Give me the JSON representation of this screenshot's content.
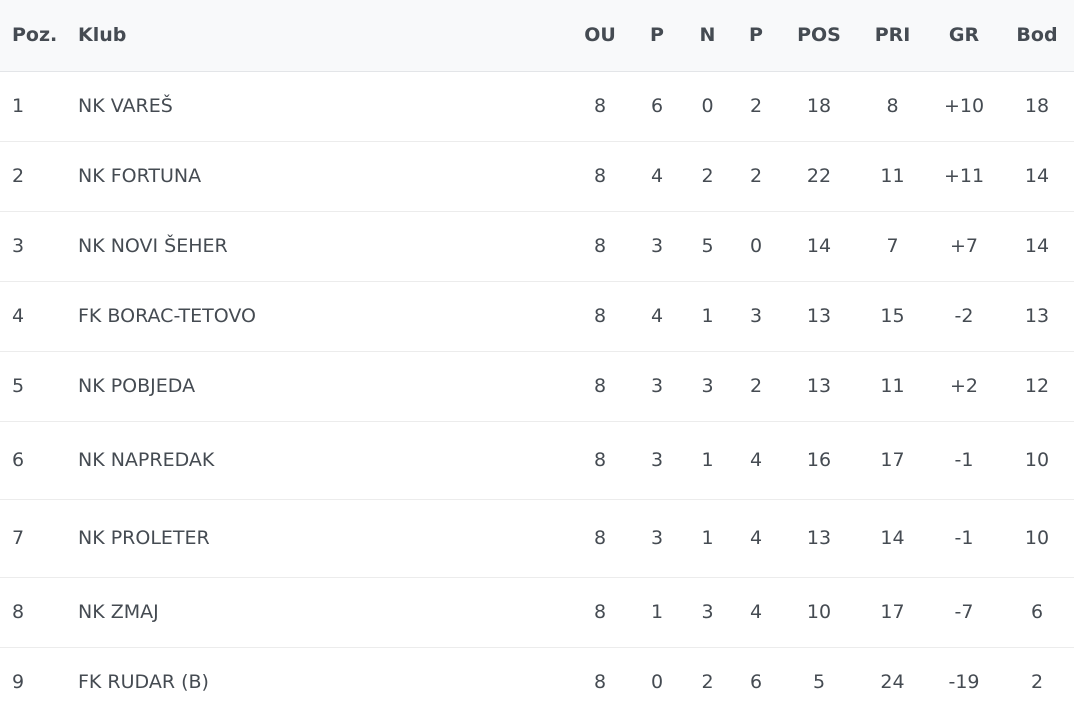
{
  "table": {
    "headers": [
      "Poz.",
      "Klub",
      "OU",
      "P",
      "N",
      "P",
      "POS",
      "PRI",
      "GR",
      "Bod"
    ],
    "rows": [
      [
        "1",
        "NK VAREŠ",
        "8",
        "6",
        "0",
        "2",
        "18",
        "8",
        "+10",
        "18"
      ],
      [
        "2",
        "NK FORTUNA",
        "8",
        "4",
        "2",
        "2",
        "22",
        "11",
        "+11",
        "14"
      ],
      [
        "3",
        "NK NOVI ŠEHER",
        "8",
        "3",
        "5",
        "0",
        "14",
        "7",
        "+7",
        "14"
      ],
      [
        "4",
        "FK BORAC-TETOVO",
        "8",
        "4",
        "1",
        "3",
        "13",
        "15",
        "-2",
        "13"
      ],
      [
        "5",
        "NK POBJEDA",
        "8",
        "3",
        "3",
        "2",
        "13",
        "11",
        "+2",
        "12"
      ],
      [
        "6",
        "NK NAPREDAK",
        "8",
        "3",
        "1",
        "4",
        "16",
        "17",
        "-1",
        "10"
      ],
      [
        "7",
        "NK PROLETER",
        "8",
        "3",
        "1",
        "4",
        "13",
        "14",
        "-1",
        "10"
      ],
      [
        "8",
        "NK ZMAJ",
        "8",
        "1",
        "3",
        "4",
        "10",
        "17",
        "-7",
        "6"
      ],
      [
        "9",
        "FK RUDAR (B)",
        "8",
        "0",
        "2",
        "6",
        "5",
        "24",
        "-19",
        "2"
      ]
    ]
  }
}
